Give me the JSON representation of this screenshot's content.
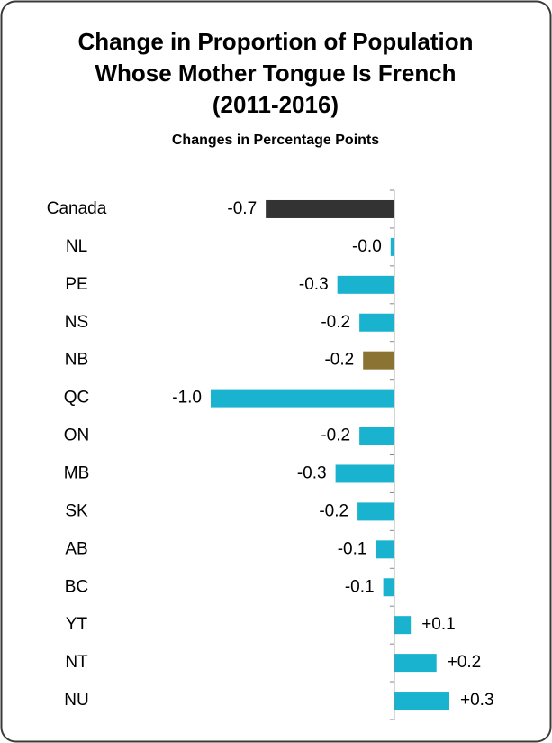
{
  "chart_data": {
    "type": "hbar",
    "title": [
      "Change in Proportion of Population",
      "Whose Mother Tongue Is French",
      "(2011-2016)"
    ],
    "subtitle": "Changes in Percentage Points",
    "categories": [
      "Canada",
      "NL",
      "PE",
      "NS",
      "NB",
      "QC",
      "ON",
      "MB",
      "SK",
      "AB",
      "BC",
      "YT",
      "NT",
      "NU"
    ],
    "values": [
      -0.7,
      -0.02,
      -0.31,
      -0.19,
      -0.17,
      -1.0,
      -0.19,
      -0.32,
      -0.2,
      -0.1,
      -0.06,
      0.09,
      0.23,
      0.3
    ],
    "value_labels": [
      "-0.7",
      "-0.0",
      "-0.3",
      "-0.2",
      "-0.2",
      "-1.0",
      "-0.2",
      "-0.3",
      "-0.2",
      "-0.1",
      "-0.1",
      "+0.1",
      "+0.2",
      "+0.3"
    ],
    "colors": [
      "#333333",
      "#1ab3cf",
      "#1ab3cf",
      "#1ab3cf",
      "#8b7433",
      "#1ab3cf",
      "#1ab3cf",
      "#1ab3cf",
      "#1ab3cf",
      "#1ab3cf",
      "#1ab3cf",
      "#1ab3cf",
      "#1ab3cf",
      "#1ab3cf"
    ],
    "xlim": [
      -1.0,
      0.3
    ]
  }
}
